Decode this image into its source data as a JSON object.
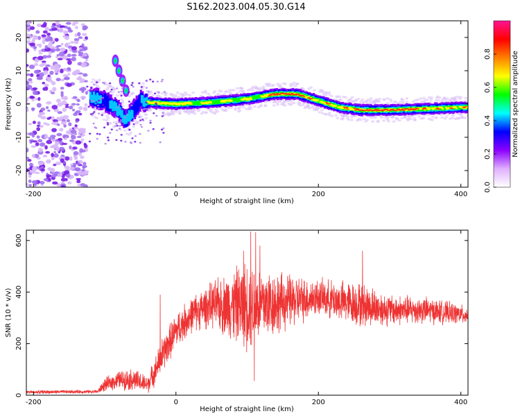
{
  "figure_title": "S162.2023.004.05.30.G14",
  "chart_data": [
    {
      "type": "heatmap",
      "title": "S162.2023.004.05.30.G14",
      "xlabel": "Height of straight line (km)",
      "ylabel": "Frequency (Hz)",
      "xlim": [
        -210,
        410
      ],
      "ylim": [
        -25,
        25
      ],
      "x_ticks": [
        -200,
        0,
        200,
        400
      ],
      "y_ticks": [
        -20,
        -10,
        0,
        10,
        20
      ],
      "grid": false,
      "colorbar": {
        "label": "Normalized spectral amplitude",
        "range": [
          0,
          1
        ],
        "ticks": [
          0.0,
          0.2,
          0.4,
          0.6,
          0.8
        ],
        "colors": [
          "#ffffff",
          "#e0b0ff",
          "#8b00ff",
          "#0000ff",
          "#00ffff",
          "#00ff00",
          "#ffff00",
          "#ff8000",
          "#ff0000",
          "#ff1493"
        ]
      },
      "noise_region_x": [
        -210,
        -125
      ],
      "ridge": [
        {
          "x": -120,
          "y": 2
        },
        {
          "x": -100,
          "y": 1
        },
        {
          "x": -80,
          "y": -2
        },
        {
          "x": -70,
          "y": -5
        },
        {
          "x": -60,
          "y": -2
        },
        {
          "x": -50,
          "y": 1
        },
        {
          "x": -40,
          "y": 0.5
        },
        {
          "x": 0,
          "y": 0
        },
        {
          "x": 50,
          "y": 0.5
        },
        {
          "x": 100,
          "y": 1.5
        },
        {
          "x": 140,
          "y": 3
        },
        {
          "x": 170,
          "y": 3
        },
        {
          "x": 200,
          "y": 1
        },
        {
          "x": 230,
          "y": -1
        },
        {
          "x": 260,
          "y": -1.8
        },
        {
          "x": 300,
          "y": -1.8
        },
        {
          "x": 340,
          "y": -1.5
        },
        {
          "x": 380,
          "y": -1.2
        },
        {
          "x": 410,
          "y": -1
        }
      ],
      "branch": [
        {
          "x": -85,
          "y": 13
        },
        {
          "x": -80,
          "y": 10
        },
        {
          "x": -75,
          "y": 7
        },
        {
          "x": -70,
          "y": 4
        }
      ]
    },
    {
      "type": "line",
      "xlabel": "Height of straight line (km)",
      "ylabel": "SNR (10 * v/v)",
      "xlim": [
        -210,
        410
      ],
      "ylim": [
        0,
        640
      ],
      "x_ticks": [
        -200,
        0,
        200,
        400
      ],
      "y_ticks": [
        0,
        200,
        400,
        600
      ],
      "grid": false,
      "series": [
        {
          "name": "SNR",
          "color": "#ee3333",
          "envelope": [
            {
              "x": -210,
              "mean": 12,
              "spread": 8
            },
            {
              "x": -110,
              "mean": 14,
              "spread": 8
            },
            {
              "x": -100,
              "mean": 40,
              "spread": 30
            },
            {
              "x": -80,
              "mean": 60,
              "spread": 40
            },
            {
              "x": -60,
              "mean": 60,
              "spread": 50
            },
            {
              "x": -40,
              "mean": 40,
              "spread": 40
            },
            {
              "x": -30,
              "mean": 90,
              "spread": 60
            },
            {
              "x": -20,
              "mean": 150,
              "spread": 80
            },
            {
              "x": 0,
              "mean": 250,
              "spread": 80
            },
            {
              "x": 25,
              "mean": 320,
              "spread": 80
            },
            {
              "x": 50,
              "mean": 350,
              "spread": 100
            },
            {
              "x": 100,
              "mean": 350,
              "spread": 200
            },
            {
              "x": 150,
              "mean": 360,
              "spread": 130
            },
            {
              "x": 200,
              "mean": 380,
              "spread": 80
            },
            {
              "x": 260,
              "mean": 350,
              "spread": 100
            },
            {
              "x": 300,
              "mean": 330,
              "spread": 70
            },
            {
              "x": 350,
              "mean": 330,
              "spread": 60
            },
            {
              "x": 410,
              "mean": 310,
              "spread": 40
            }
          ],
          "peaks": [
            {
              "x": 105,
              "y": 635
            },
            {
              "x": 112,
              "y": 632
            },
            {
              "x": 95,
              "y": 560
            },
            {
              "x": 262,
              "y": 560
            },
            {
              "x": 118,
              "y": 580
            },
            {
              "x": -22,
              "y": 390
            },
            {
              "x": 110,
              "y": 55
            }
          ]
        }
      ]
    }
  ]
}
